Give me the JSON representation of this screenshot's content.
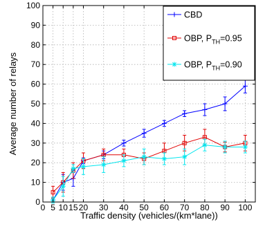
{
  "chart_data": {
    "type": "line",
    "xlabel": "Traffic density (vehicles/(km*lane))",
    "ylabel": "Average number of relays",
    "xlim": [
      0,
      105
    ],
    "ylim": [
      0,
      100
    ],
    "xticks": [
      0,
      5,
      10,
      15,
      20,
      30,
      40,
      50,
      60,
      70,
      80,
      90,
      100
    ],
    "yticks": [
      0,
      10,
      20,
      30,
      40,
      50,
      60,
      70,
      80,
      90,
      100
    ],
    "grid": true,
    "legend_position": "top-right",
    "series": [
      {
        "name": "CBD",
        "legend_main": "CBD",
        "legend_sub": "",
        "legend_suffix": "",
        "color": "#0000ff",
        "marker": "plus",
        "x": [
          5,
          10,
          15,
          20,
          30,
          40,
          50,
          60,
          70,
          80,
          90,
          100
        ],
        "y": [
          1,
          10,
          12,
          21,
          24,
          30,
          35,
          40,
          45,
          47,
          50,
          59
        ],
        "err": [
          1,
          4,
          4,
          1.5,
          2,
          1.5,
          2,
          1.5,
          1.5,
          3,
          3.5,
          3.5
        ]
      },
      {
        "name": "OBP, P_TH=0.95",
        "legend_main": "OBP, P",
        "legend_sub": "TH",
        "legend_suffix": "=0.95",
        "color": "#e00000",
        "marker": "square",
        "x": [
          5,
          10,
          15,
          20,
          30,
          40,
          50,
          60,
          70,
          80,
          90,
          100
        ],
        "y": [
          5,
          10,
          16,
          21,
          24,
          24,
          22,
          26,
          30,
          33,
          28,
          30
        ],
        "err": [
          3,
          5,
          4,
          4,
          3,
          3,
          3,
          4,
          4,
          4,
          2.5,
          4
        ]
      },
      {
        "name": "OBP, P_TH=0.90",
        "legend_main": "OBP, P",
        "legend_sub": "TH",
        "legend_suffix": "=0.90",
        "color": "#00e5ee",
        "marker": "asterisk",
        "x": [
          5,
          10,
          15,
          20,
          30,
          40,
          50,
          60,
          70,
          80,
          90,
          100
        ],
        "y": [
          1,
          8,
          17,
          18,
          19,
          21,
          23,
          22,
          23,
          29,
          28,
          28
        ],
        "err": [
          1.5,
          5,
          2,
          4,
          4,
          3,
          4,
          3,
          4,
          3,
          3,
          3
        ]
      }
    ]
  }
}
